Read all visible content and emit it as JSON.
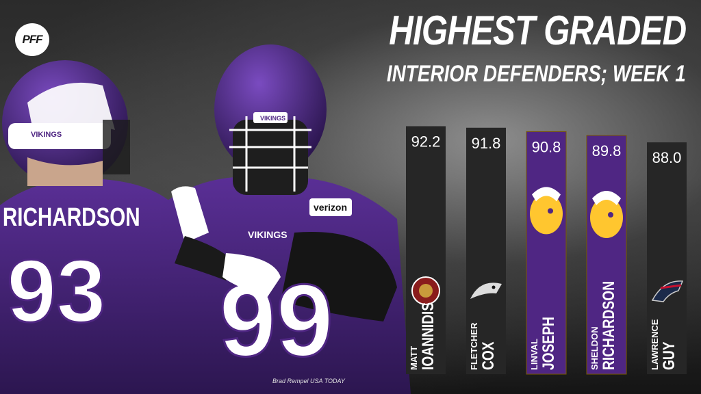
{
  "branding": {
    "logo_text": "PFF"
  },
  "header": {
    "title": "HIGHEST GRADED",
    "subtitle": "INTERIOR DEFENDERS; WEEK 1"
  },
  "photo": {
    "credit": "Brad Rempel USA TODAY",
    "jersey_name": "RICHARDSON",
    "jersey_left_number": "93",
    "jersey_right_number": "99",
    "helmet_text": "VIKINGS",
    "chest_text": "VIKINGS",
    "sponsor_patch": "verizon"
  },
  "colors": {
    "dark_bar": "#262626",
    "vikings_bar": "#4f2683",
    "vikings_gold": "#ffc62f",
    "text": "#ffffff"
  },
  "chart_data": {
    "type": "bar",
    "title": "HIGHEST GRADED",
    "subtitle": "INTERIOR DEFENDERS; WEEK 1",
    "categories": [
      "MATT IOANNIDIS",
      "FLETCHER COX",
      "LINVAL JOSEPH",
      "SHELDON RICHARDSON",
      "LAWRENCE GUY"
    ],
    "values": [
      92.2,
      91.8,
      90.8,
      89.8,
      88.0
    ],
    "value_labels": [
      "92.2",
      "91.8",
      "90.8",
      "89.8",
      "88.0"
    ],
    "players": [
      {
        "first": "MATT",
        "last": "IOANNIDIS",
        "team_logo": "redskins-logo-icon",
        "team_color": "#262626"
      },
      {
        "first": "FLETCHER",
        "last": "COX",
        "team_logo": "eagles-logo-icon",
        "team_color": "#262626"
      },
      {
        "first": "LINVAL",
        "last": "JOSEPH",
        "team_logo": "vikings-logo-icon",
        "team_color": "#4f2683"
      },
      {
        "first": "SHELDON",
        "last": "RICHARDSON",
        "team_logo": "vikings-logo-icon",
        "team_color": "#4f2683"
      },
      {
        "first": "LAWRENCE",
        "last": "GUY",
        "team_logo": "patriots-logo-icon",
        "team_color": "#262626"
      }
    ],
    "ylim": [
      0,
      100
    ],
    "grid": false,
    "legend": "none"
  }
}
